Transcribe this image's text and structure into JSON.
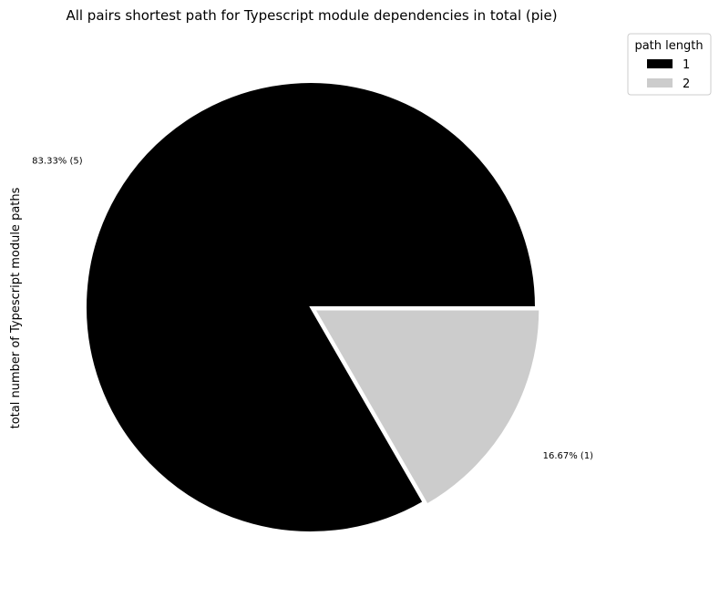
{
  "chart_data": {
    "type": "pie",
    "title": "All pairs shortest path for Typescript module dependencies in total (pie)",
    "ylabel": "total number of Typescript module paths",
    "legend": {
      "title": "path length",
      "placement": "top-right, outside plot"
    },
    "slices": [
      {
        "label": "1",
        "value": 5,
        "percent_label": "83.33% (5)",
        "color": "#000000"
      },
      {
        "label": "2",
        "value": 1,
        "percent_label": "16.67% (1)",
        "color": "#cccccc"
      }
    ],
    "explode": [
      0,
      0.02
    ],
    "start_angle_deg": 0,
    "direction": "counterclockwise"
  }
}
